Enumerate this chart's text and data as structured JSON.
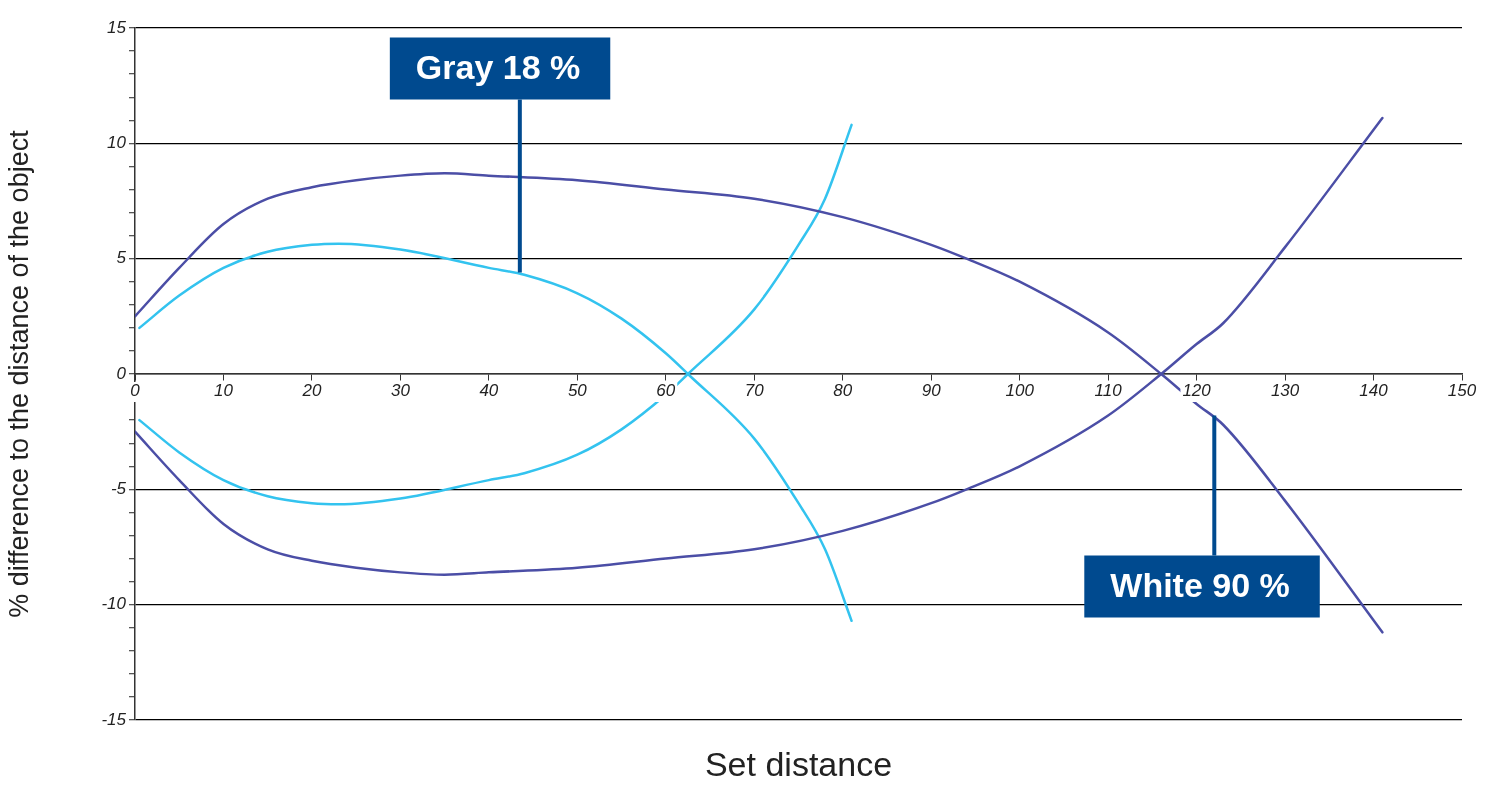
{
  "chart_data": {
    "type": "line",
    "xlabel": "Set distance",
    "ylabel": "% difference to the distance of the object",
    "xlim": [
      0,
      150
    ],
    "xticks": [
      0,
      10,
      20,
      30,
      40,
      50,
      60,
      70,
      80,
      90,
      100,
      110,
      120,
      130,
      140,
      150
    ],
    "ylim": [
      -15,
      15
    ],
    "yticks": [
      -15,
      {
        "value": -14,
        "label": null
      },
      {
        "value": -13,
        "label": null
      },
      {
        "value": -12,
        "label": null
      },
      {
        "value": -11,
        "label": null
      },
      -10,
      {
        "value": -9,
        "label": null
      },
      {
        "value": -8,
        "label": null
      },
      {
        "value": -7,
        "label": null
      },
      {
        "value": -6,
        "label": null
      },
      -5,
      {
        "value": -4,
        "label": null
      },
      {
        "value": -3,
        "label": null
      },
      {
        "value": -2,
        "label": null
      },
      {
        "value": -1,
        "label": null
      },
      0,
      {
        "value": 1,
        "label": null
      },
      {
        "value": 2,
        "label": null
      },
      {
        "value": 3,
        "label": null
      },
      {
        "value": 4,
        "label": null
      },
      5,
      {
        "value": 6,
        "label": null
      },
      {
        "value": 7,
        "label": null
      },
      {
        "value": 8,
        "label": null
      },
      {
        "value": 9,
        "label": null
      },
      10,
      {
        "value": 11,
        "label": null
      },
      {
        "value": 12,
        "label": null
      },
      {
        "value": 13,
        "label": null
      },
      {
        "value": 14,
        "label": null
      },
      15
    ],
    "grid": "y",
    "marker": "none",
    "line_style": "solid",
    "series": [
      {
        "color": "#4b4ea6",
        "x": [
          0,
          5,
          10,
          15,
          20,
          25,
          30,
          35,
          40,
          50,
          60,
          70,
          80,
          90,
          94,
          100,
          110,
          116,
          120,
          123,
          130,
          141
        ],
        "values": [
          2.5,
          4.6,
          6.5,
          7.6,
          8.1,
          8.4,
          8.6,
          8.7,
          8.6,
          8.4,
          8.0,
          7.6,
          6.8,
          5.6,
          5.0,
          4.0,
          1.8,
          0,
          -1.3,
          -2.2,
          -5.5,
          -11.2
        ]
      },
      {
        "color": "#4b4ea6",
        "x": [
          0,
          5,
          10,
          15,
          20,
          25,
          30,
          35,
          40,
          50,
          60,
          70,
          80,
          90,
          94,
          100,
          110,
          116,
          120,
          123,
          130,
          141
        ],
        "values": [
          -2.5,
          -4.6,
          -6.5,
          -7.6,
          -8.1,
          -8.4,
          -8.6,
          -8.7,
          -8.6,
          -8.4,
          -8.0,
          -7.6,
          -6.8,
          -5.6,
          -5.0,
          -4.0,
          -1.8,
          0,
          1.3,
          2.2,
          5.5,
          11.1
        ]
      },
      {
        "color": "#33c3ef",
        "x": [
          0.5,
          5,
          10,
          15,
          20,
          23,
          30,
          40,
          44,
          50,
          55,
          60,
          62.5,
          70,
          75,
          78,
          81
        ],
        "values": [
          2.0,
          3.4,
          4.6,
          5.3,
          5.6,
          5.65,
          5.4,
          4.6,
          4.3,
          3.5,
          2.4,
          0.9,
          0,
          -2.8,
          -5.6,
          -7.6,
          -10.7
        ]
      },
      {
        "color": "#33c3ef",
        "x": [
          0.5,
          5,
          10,
          15,
          20,
          23,
          30,
          40,
          44,
          50,
          55,
          60,
          62.5,
          70,
          75,
          78,
          81
        ],
        "values": [
          -2.0,
          -3.4,
          -4.6,
          -5.3,
          -5.6,
          -5.65,
          -5.4,
          -4.6,
          -4.3,
          -3.5,
          -2.4,
          -0.9,
          0,
          2.8,
          5.6,
          7.6,
          10.8
        ]
      }
    ],
    "annotations": [
      {
        "text": "Gray 18 %",
        "x": 43.5,
        "y": 4.4
      },
      {
        "text": "White 90 %",
        "x": 122,
        "y": -1.8
      }
    ]
  }
}
